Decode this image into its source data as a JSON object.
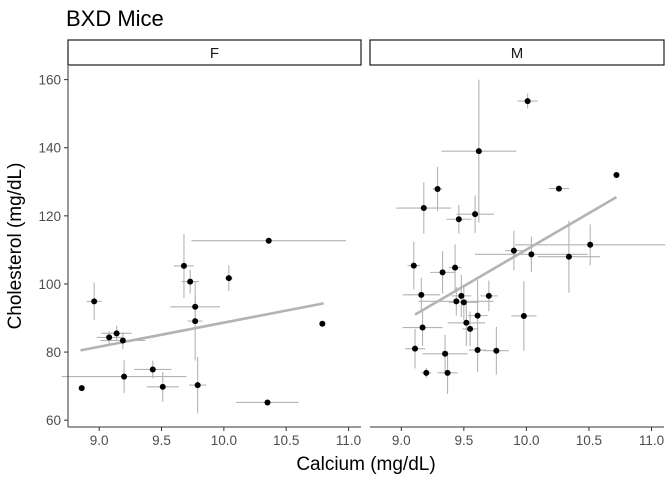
{
  "chart_data": {
    "type": "scatter",
    "title": "BXD Mice",
    "xlabel": "Calcium (mg/dL)",
    "ylabel": "Cholesterol (mg/dL)",
    "xlim": [
      8.75,
      11.1
    ],
    "ylim": [
      58,
      164
    ],
    "x_ticks": [
      9.0,
      9.5,
      10.0,
      10.5,
      11.0
    ],
    "x_tick_labels": [
      "9.0",
      "9.5",
      "10.0",
      "10.5",
      "11.0"
    ],
    "y_ticks": [
      60,
      80,
      100,
      120,
      140,
      160
    ],
    "y_tick_labels": [
      "60",
      "80",
      "100",
      "120",
      "140",
      "160"
    ],
    "grid": false,
    "colors": {
      "point": "#000000",
      "errorbar": "#b3b3b3",
      "fit_line": "#b3b3b3",
      "strip_border": "#1a1a1a"
    },
    "panels": [
      {
        "label": "F",
        "fit": {
          "x": [
            8.85,
            10.8
          ],
          "y": [
            80.5,
            94.3
          ]
        },
        "points": [
          {
            "x": 8.86,
            "y": 69.4,
            "xerr": 0,
            "yerr": 0
          },
          {
            "x": 8.96,
            "y": 94.9,
            "xerr": 0.06,
            "yerr": 5.5
          },
          {
            "x": 9.08,
            "y": 84.3,
            "xerr": 0.1,
            "yerr": 1.8
          },
          {
            "x": 9.14,
            "y": 85.5,
            "xerr": 0.12,
            "yerr": 2.2
          },
          {
            "x": 9.19,
            "y": 83.4,
            "xerr": 0.18,
            "yerr": 2.5
          },
          {
            "x": 9.2,
            "y": 72.8,
            "xerr": 0.5,
            "yerr": 4.8
          },
          {
            "x": 9.43,
            "y": 74.9,
            "xerr": 0.15,
            "yerr": 2.6
          },
          {
            "x": 9.51,
            "y": 69.8,
            "xerr": 0.13,
            "yerr": 4.4
          },
          {
            "x": 9.68,
            "y": 105.3,
            "xerr": 0.08,
            "yerr": 9.4
          },
          {
            "x": 9.73,
            "y": 100.7,
            "xerr": 0.07,
            "yerr": 3.5
          },
          {
            "x": 9.77,
            "y": 93.3,
            "xerr": 0.2,
            "yerr": 3.2
          },
          {
            "x": 9.77,
            "y": 89.1,
            "xerr": 0.06,
            "yerr": 11.6
          },
          {
            "x": 9.79,
            "y": 70.3,
            "xerr": 0.07,
            "yerr": 8.3
          },
          {
            "x": 10.04,
            "y": 101.7,
            "xerr": 0.03,
            "yerr": 3.8
          },
          {
            "x": 10.36,
            "y": 112.7,
            "xerr": 0.62,
            "yerr": 0
          },
          {
            "x": 10.35,
            "y": 65.2,
            "xerr": 0.25,
            "yerr": 0
          },
          {
            "x": 10.79,
            "y": 88.3,
            "xerr": 0,
            "yerr": 0
          }
        ]
      },
      {
        "label": "M",
        "fit": {
          "x": [
            9.11,
            10.72
          ],
          "y": [
            91.0,
            125.5
          ]
        },
        "points": [
          {
            "x": 9.1,
            "y": 105.4,
            "xerr": 0.05,
            "yerr": 7.0
          },
          {
            "x": 9.11,
            "y": 81.0,
            "xerr": 0.08,
            "yerr": 5.8
          },
          {
            "x": 9.16,
            "y": 96.8,
            "xerr": 0.15,
            "yerr": 5.0
          },
          {
            "x": 9.17,
            "y": 87.2,
            "xerr": 0.16,
            "yerr": 5.4
          },
          {
            "x": 9.18,
            "y": 122.3,
            "xerr": 0.22,
            "yerr": 7.5
          },
          {
            "x": 9.2,
            "y": 73.9,
            "xerr": 0.04,
            "yerr": 1.5
          },
          {
            "x": 9.29,
            "y": 127.9,
            "xerr": 0.04,
            "yerr": 6.5
          },
          {
            "x": 9.33,
            "y": 103.4,
            "xerr": 0.1,
            "yerr": 6.2
          },
          {
            "x": 9.35,
            "y": 79.5,
            "xerr": 0.18,
            "yerr": 5.6
          },
          {
            "x": 9.37,
            "y": 73.9,
            "xerr": 0.08,
            "yerr": 6.2
          },
          {
            "x": 9.43,
            "y": 104.8,
            "xerr": 0.05,
            "yerr": 6.8
          },
          {
            "x": 9.44,
            "y": 94.9,
            "xerr": 0.3,
            "yerr": 4.2
          },
          {
            "x": 9.46,
            "y": 119.0,
            "xerr": 0.1,
            "yerr": 4.2
          },
          {
            "x": 9.48,
            "y": 96.5,
            "xerr": 0.08,
            "yerr": 6.2
          },
          {
            "x": 9.5,
            "y": 94.6,
            "xerr": 0.12,
            "yerr": 5.2
          },
          {
            "x": 9.52,
            "y": 88.6,
            "xerr": 0.15,
            "yerr": 6.8
          },
          {
            "x": 9.55,
            "y": 86.8,
            "xerr": 0.06,
            "yerr": 5.1
          },
          {
            "x": 9.59,
            "y": 120.5,
            "xerr": 0.15,
            "yerr": 5.5
          },
          {
            "x": 9.61,
            "y": 90.7,
            "xerr": 0.08,
            "yerr": 10.5
          },
          {
            "x": 9.62,
            "y": 139.0,
            "xerr": 0.3,
            "yerr": 21.0
          },
          {
            "x": 9.61,
            "y": 80.6,
            "xerr": 0.07,
            "yerr": 6.5
          },
          {
            "x": 9.7,
            "y": 96.5,
            "xerr": 0.07,
            "yerr": 4.5
          },
          {
            "x": 9.76,
            "y": 80.4,
            "xerr": 0.1,
            "yerr": 7.0
          },
          {
            "x": 9.9,
            "y": 109.8,
            "xerr": 0.07,
            "yerr": 5.8
          },
          {
            "x": 9.98,
            "y": 90.6,
            "xerr": 0.1,
            "yerr": 10.2
          },
          {
            "x": 10.01,
            "y": 153.7,
            "xerr": 0.08,
            "yerr": 2.2
          },
          {
            "x": 10.04,
            "y": 108.7,
            "xerr": 0.45,
            "yerr": 5.2
          },
          {
            "x": 10.26,
            "y": 128.0,
            "xerr": 0.08,
            "yerr": 0
          },
          {
            "x": 10.34,
            "y": 108.0,
            "xerr": 0.25,
            "yerr": 10.6
          },
          {
            "x": 10.51,
            "y": 111.5,
            "xerr": 0.6,
            "yerr": 6.0
          },
          {
            "x": 10.72,
            "y": 132.0,
            "xerr": 0,
            "yerr": 0
          }
        ]
      }
    ]
  }
}
